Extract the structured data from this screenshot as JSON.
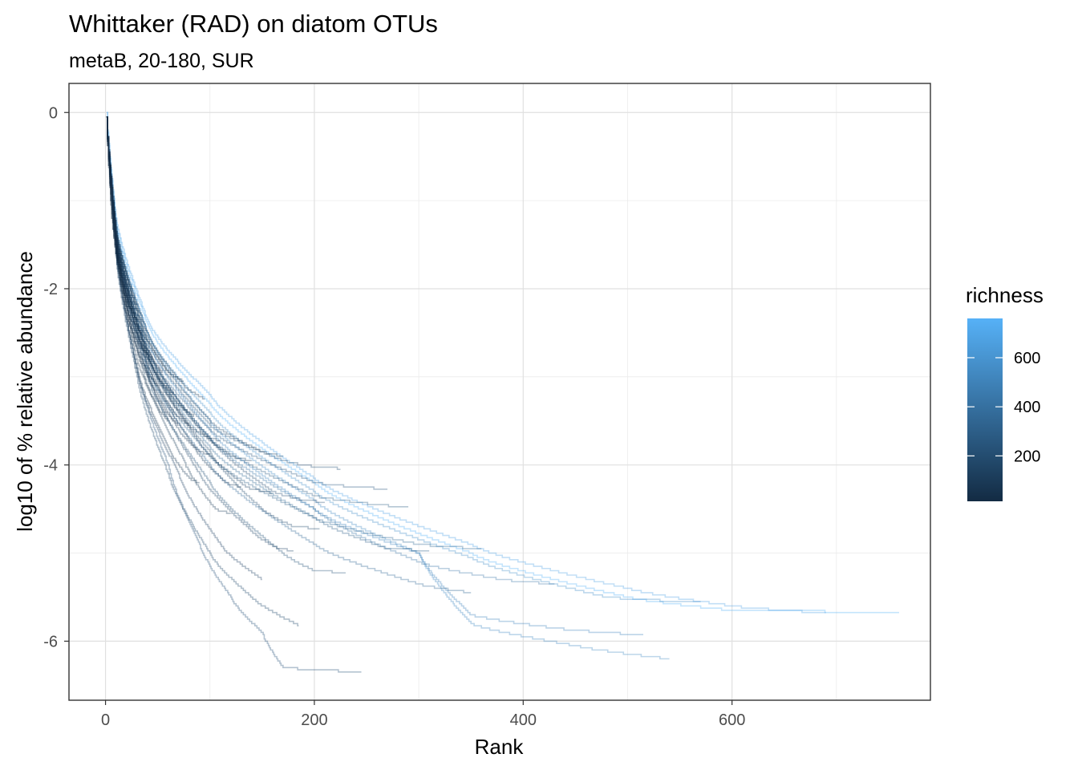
{
  "chart_data": {
    "type": "line",
    "title": "Whittaker (RAD) on diatom OTUs",
    "subtitle": "metaB, 20-180, SUR",
    "xlabel": "Rank",
    "ylabel": "log10 of % relative abundance",
    "xlim": [
      -35,
      790
    ],
    "ylim": [
      -6.67,
      0.33
    ],
    "x_ticks": [
      0,
      200,
      400,
      600
    ],
    "x_tick_labels": [
      "0",
      "200",
      "400",
      "600"
    ],
    "y_ticks": [
      0,
      -2,
      -4,
      -6
    ],
    "y_tick_labels": [
      "0",
      "-2",
      "-4",
      "-6"
    ],
    "grid": true,
    "legend": {
      "title": "richness",
      "position": "right",
      "range": [
        15,
        760
      ],
      "ticks": [
        200,
        400,
        600
      ],
      "tick_labels": [
        "200",
        "400",
        "600"
      ],
      "color_low": "#132b43",
      "color_high": "#56b1f7"
    },
    "series": [
      {
        "richness": 760,
        "points": [
          [
            1,
            0
          ],
          [
            10,
            -1.25
          ],
          [
            40,
            -2.4
          ],
          [
            100,
            -3.3
          ],
          [
            200,
            -4.2
          ],
          [
            350,
            -5.0
          ],
          [
            500,
            -5.5
          ],
          [
            600,
            -5.65
          ],
          [
            760,
            -5.67
          ]
        ]
      },
      {
        "richness": 690,
        "points": [
          [
            1,
            0
          ],
          [
            10,
            -1.2
          ],
          [
            40,
            -2.35
          ],
          [
            100,
            -3.2
          ],
          [
            200,
            -4.15
          ],
          [
            350,
            -4.9
          ],
          [
            500,
            -5.4
          ],
          [
            600,
            -5.6
          ],
          [
            690,
            -5.68
          ]
        ]
      },
      {
        "richness": 570,
        "points": [
          [
            1,
            -0.05
          ],
          [
            10,
            -1.3
          ],
          [
            40,
            -2.5
          ],
          [
            100,
            -3.4
          ],
          [
            200,
            -4.3
          ],
          [
            350,
            -5.05
          ],
          [
            480,
            -5.5
          ],
          [
            570,
            -5.56
          ]
        ]
      },
      {
        "richness": 540,
        "points": [
          [
            1,
            -0.05
          ],
          [
            10,
            -1.3
          ],
          [
            40,
            -2.5
          ],
          [
            100,
            -3.5
          ],
          [
            200,
            -4.4
          ],
          [
            300,
            -5.0
          ],
          [
            350,
            -5.8
          ],
          [
            450,
            -6.05
          ],
          [
            540,
            -6.2
          ]
        ]
      },
      {
        "richness": 515,
        "points": [
          [
            1,
            -0.05
          ],
          [
            10,
            -1.35
          ],
          [
            40,
            -2.6
          ],
          [
            100,
            -3.6
          ],
          [
            200,
            -4.5
          ],
          [
            300,
            -5.0
          ],
          [
            350,
            -5.7
          ],
          [
            430,
            -5.85
          ],
          [
            515,
            -5.93
          ]
        ]
      },
      {
        "richness": 430,
        "points": [
          [
            1,
            -0.05
          ],
          [
            10,
            -1.4
          ],
          [
            40,
            -2.7
          ],
          [
            100,
            -3.7
          ],
          [
            200,
            -4.5
          ],
          [
            300,
            -5.1
          ],
          [
            380,
            -5.3
          ],
          [
            430,
            -5.35
          ]
        ]
      },
      {
        "richness": 360,
        "points": [
          [
            1,
            -0.05
          ],
          [
            10,
            -1.45
          ],
          [
            40,
            -2.75
          ],
          [
            100,
            -3.8
          ],
          [
            200,
            -4.6
          ],
          [
            300,
            -4.9
          ],
          [
            360,
            -4.95
          ]
        ]
      },
      {
        "richness": 350,
        "points": [
          [
            1,
            -0.05
          ],
          [
            10,
            -1.5
          ],
          [
            40,
            -2.9
          ],
          [
            100,
            -4.0
          ],
          [
            200,
            -4.9
          ],
          [
            300,
            -5.35
          ],
          [
            350,
            -5.45
          ]
        ]
      },
      {
        "richness": 310,
        "points": [
          [
            1,
            -0.05
          ],
          [
            10,
            -1.5
          ],
          [
            40,
            -2.9
          ],
          [
            100,
            -3.9
          ],
          [
            200,
            -4.6
          ],
          [
            270,
            -4.95
          ],
          [
            310,
            -4.97
          ]
        ]
      },
      {
        "richness": 290,
        "points": [
          [
            1,
            -0.05
          ],
          [
            10,
            -1.45
          ],
          [
            40,
            -2.8
          ],
          [
            100,
            -3.7
          ],
          [
            200,
            -4.35
          ],
          [
            260,
            -4.45
          ],
          [
            290,
            -4.48
          ]
        ]
      },
      {
        "richness": 270,
        "points": [
          [
            1,
            -0.05
          ],
          [
            10,
            -1.4
          ],
          [
            40,
            -2.7
          ],
          [
            100,
            -3.6
          ],
          [
            200,
            -4.2
          ],
          [
            240,
            -4.25
          ],
          [
            270,
            -4.27
          ]
        ]
      },
      {
        "richness": 245,
        "points": [
          [
            1,
            -0.05
          ],
          [
            10,
            -1.6
          ],
          [
            30,
            -2.9
          ],
          [
            60,
            -4.0
          ],
          [
            90,
            -4.9
          ],
          [
            120,
            -5.5
          ],
          [
            150,
            -5.9
          ],
          [
            170,
            -6.3
          ],
          [
            245,
            -6.35
          ]
        ]
      },
      {
        "richness": 230,
        "points": [
          [
            1,
            -0.05
          ],
          [
            10,
            -1.55
          ],
          [
            40,
            -3.0
          ],
          [
            100,
            -4.2
          ],
          [
            170,
            -5.0
          ],
          [
            200,
            -5.2
          ],
          [
            230,
            -5.22
          ]
        ]
      },
      {
        "richness": 225,
        "points": [
          [
            1,
            -0.05
          ],
          [
            10,
            -1.35
          ],
          [
            40,
            -2.6
          ],
          [
            100,
            -3.55
          ],
          [
            170,
            -3.95
          ],
          [
            200,
            -4.02
          ],
          [
            225,
            -4.04
          ]
        ]
      },
      {
        "richness": 210,
        "points": [
          [
            1,
            -0.05
          ],
          [
            10,
            -1.4
          ],
          [
            40,
            -2.7
          ],
          [
            100,
            -3.7
          ],
          [
            160,
            -4.3
          ],
          [
            190,
            -4.4
          ],
          [
            210,
            -4.42
          ]
        ]
      },
      {
        "richness": 205,
        "points": [
          [
            1,
            -0.05
          ],
          [
            10,
            -1.45
          ],
          [
            40,
            -2.8
          ],
          [
            100,
            -3.85
          ],
          [
            150,
            -4.5
          ],
          [
            180,
            -4.7
          ],
          [
            205,
            -4.72
          ]
        ]
      },
      {
        "richness": 185,
        "points": [
          [
            1,
            -0.05
          ],
          [
            10,
            -1.65
          ],
          [
            30,
            -3.0
          ],
          [
            60,
            -4.1
          ],
          [
            100,
            -5.0
          ],
          [
            140,
            -5.5
          ],
          [
            185,
            -5.82
          ]
        ]
      },
      {
        "richness": 180,
        "points": [
          [
            1,
            -0.05
          ],
          [
            10,
            -1.5
          ],
          [
            40,
            -2.95
          ],
          [
            90,
            -4.1
          ],
          [
            140,
            -4.75
          ],
          [
            165,
            -4.95
          ],
          [
            180,
            -4.97
          ]
        ]
      },
      {
        "richness": 170,
        "points": [
          [
            1,
            -0.05
          ],
          [
            10,
            -1.35
          ],
          [
            40,
            -2.55
          ],
          [
            100,
            -3.5
          ],
          [
            150,
            -3.85
          ],
          [
            170,
            -3.9
          ]
        ]
      },
      {
        "richness": 160,
        "points": [
          [
            1,
            -0.05
          ],
          [
            10,
            -1.45
          ],
          [
            40,
            -2.75
          ],
          [
            90,
            -3.75
          ],
          [
            135,
            -4.25
          ],
          [
            160,
            -4.32
          ]
        ]
      },
      {
        "richness": 150,
        "points": [
          [
            1,
            -0.05
          ],
          [
            10,
            -1.6
          ],
          [
            30,
            -2.95
          ],
          [
            70,
            -4.1
          ],
          [
            110,
            -4.9
          ],
          [
            150,
            -5.3
          ]
        ]
      },
      {
        "richness": 140,
        "points": [
          [
            1,
            -0.05
          ],
          [
            10,
            -1.4
          ],
          [
            40,
            -2.65
          ],
          [
            90,
            -3.6
          ],
          [
            120,
            -3.9
          ],
          [
            140,
            -3.95
          ]
        ]
      },
      {
        "richness": 130,
        "points": [
          [
            1,
            -0.05
          ],
          [
            10,
            -1.5
          ],
          [
            40,
            -2.85
          ],
          [
            85,
            -3.8
          ],
          [
            115,
            -4.2
          ],
          [
            130,
            -4.25
          ]
        ]
      },
      {
        "richness": 120,
        "points": [
          [
            1,
            -0.05
          ],
          [
            10,
            -1.55
          ],
          [
            35,
            -2.9
          ],
          [
            75,
            -3.95
          ],
          [
            105,
            -4.5
          ],
          [
            120,
            -4.55
          ]
        ]
      },
      {
        "richness": 110,
        "points": [
          [
            1,
            -0.05
          ],
          [
            10,
            -1.45
          ],
          [
            40,
            -2.75
          ],
          [
            80,
            -3.55
          ],
          [
            100,
            -3.7
          ],
          [
            110,
            -3.72
          ]
        ]
      },
      {
        "richness": 100,
        "points": [
          [
            1,
            -0.05
          ],
          [
            10,
            -1.5
          ],
          [
            35,
            -2.8
          ],
          [
            70,
            -3.6
          ],
          [
            90,
            -3.85
          ],
          [
            100,
            -3.88
          ]
        ]
      },
      {
        "richness": 95,
        "points": [
          [
            1,
            -0.05
          ],
          [
            10,
            -1.35
          ],
          [
            40,
            -2.5
          ],
          [
            75,
            -3.1
          ],
          [
            95,
            -3.25
          ]
        ]
      },
      {
        "richness": 90,
        "points": [
          [
            1,
            -0.05
          ],
          [
            10,
            -1.6
          ],
          [
            30,
            -2.9
          ],
          [
            60,
            -3.8
          ],
          [
            80,
            -4.15
          ],
          [
            90,
            -4.2
          ]
        ]
      },
      {
        "richness": 85,
        "points": [
          [
            1,
            -0.05
          ],
          [
            10,
            -1.4
          ],
          [
            35,
            -2.6
          ],
          [
            65,
            -3.25
          ],
          [
            85,
            -3.45
          ]
        ]
      },
      {
        "richness": 80,
        "points": [
          [
            1,
            -0.05
          ],
          [
            10,
            -1.45
          ],
          [
            35,
            -2.7
          ],
          [
            65,
            -3.4
          ],
          [
            80,
            -3.55
          ]
        ]
      },
      {
        "richness": 75,
        "points": [
          [
            1,
            -0.05
          ],
          [
            10,
            -1.3
          ],
          [
            35,
            -2.45
          ],
          [
            60,
            -2.95
          ],
          [
            75,
            -3.05
          ]
        ]
      },
      {
        "richness": 70,
        "points": [
          [
            1,
            -0.05
          ],
          [
            10,
            -1.5
          ],
          [
            30,
            -2.7
          ],
          [
            55,
            -3.35
          ],
          [
            70,
            -3.55
          ]
        ]
      },
      {
        "richness": 65,
        "points": [
          [
            1,
            -0.05
          ],
          [
            10,
            -1.4
          ],
          [
            30,
            -2.5
          ],
          [
            50,
            -3.0
          ],
          [
            65,
            -3.2
          ]
        ]
      },
      {
        "richness": 60,
        "points": [
          [
            1,
            -0.05
          ],
          [
            10,
            -1.55
          ],
          [
            30,
            -2.8
          ],
          [
            50,
            -3.35
          ],
          [
            60,
            -3.5
          ]
        ]
      },
      {
        "richness": 55,
        "points": [
          [
            1,
            -0.05
          ],
          [
            10,
            -1.35
          ],
          [
            30,
            -2.4
          ],
          [
            45,
            -2.8
          ],
          [
            55,
            -2.95
          ]
        ]
      },
      {
        "richness": 50,
        "points": [
          [
            1,
            -0.05
          ],
          [
            10,
            -1.5
          ],
          [
            25,
            -2.5
          ],
          [
            40,
            -2.95
          ],
          [
            50,
            -3.1
          ]
        ]
      },
      {
        "richness": 45,
        "points": [
          [
            1,
            -0.05
          ],
          [
            8,
            -1.3
          ],
          [
            20,
            -2.2
          ],
          [
            35,
            -2.65
          ],
          [
            45,
            -2.8
          ]
        ]
      },
      {
        "richness": 40,
        "points": [
          [
            1,
            -0.05
          ],
          [
            8,
            -1.4
          ],
          [
            20,
            -2.3
          ],
          [
            30,
            -2.6
          ],
          [
            40,
            -2.75
          ]
        ]
      },
      {
        "richness": 35,
        "points": [
          [
            1,
            -0.05
          ],
          [
            8,
            -1.25
          ],
          [
            18,
            -2.0
          ],
          [
            28,
            -2.4
          ],
          [
            35,
            -2.5
          ]
        ]
      },
      {
        "richness": 30,
        "points": [
          [
            1,
            -0.05
          ],
          [
            6,
            -1.1
          ],
          [
            15,
            -1.85
          ],
          [
            25,
            -2.25
          ],
          [
            30,
            -2.35
          ]
        ]
      },
      {
        "richness": 25,
        "points": [
          [
            1,
            -0.05
          ],
          [
            6,
            -1.2
          ],
          [
            14,
            -1.9
          ],
          [
            20,
            -2.15
          ],
          [
            25,
            -2.25
          ]
        ]
      },
      {
        "richness": 20,
        "points": [
          [
            1,
            -0.05
          ],
          [
            5,
            -1.0
          ],
          [
            12,
            -1.7
          ],
          [
            20,
            -2.1
          ]
        ]
      },
      {
        "richness": 15,
        "points": [
          [
            1,
            -0.05
          ],
          [
            5,
            -1.05
          ],
          [
            10,
            -1.6
          ],
          [
            15,
            -1.8
          ]
        ]
      }
    ]
  }
}
